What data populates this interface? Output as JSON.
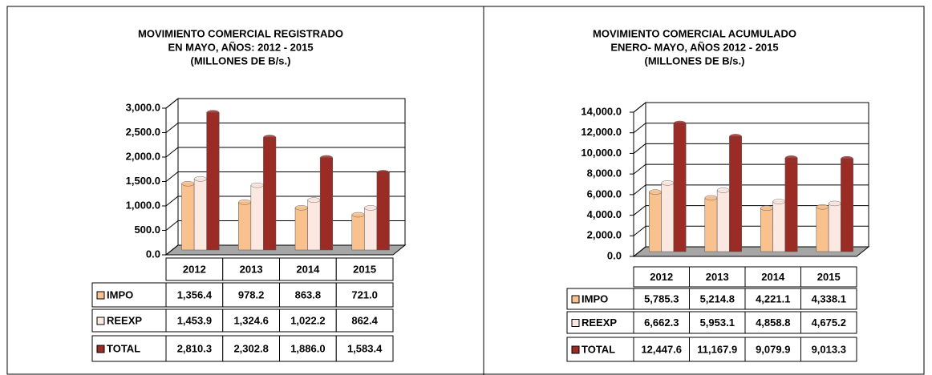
{
  "chart_data": [
    {
      "type": "bar3d",
      "title": [
        "MOVIMIENTO COMERCIAL REGISTRADO",
        "EN  MAYO, AÑOS: 2012 - 2015",
        "(MILLONES DE B/s.)"
      ],
      "categories": [
        "2012",
        "2013",
        "2014",
        "2015"
      ],
      "series": [
        {
          "name": "IMPO",
          "color": "#f9c18e",
          "values": [
            1356.4,
            978.2,
            863.8,
            721.0
          ],
          "value_labels": [
            "1,356.4",
            "978.2",
            "863.8",
            "721.0"
          ]
        },
        {
          "name": "REEXP",
          "color": "#fbe8e0",
          "values": [
            1453.9,
            1324.6,
            1022.2,
            862.4
          ],
          "value_labels": [
            "1,453.9",
            "1,324.6",
            "1,022.2",
            "862.4"
          ]
        },
        {
          "name": "TOTAL",
          "color": "#9b2b25",
          "values": [
            2810.3,
            2302.8,
            1886.0,
            1583.4
          ],
          "value_labels": [
            "2,810.3",
            "2,302.8",
            "1,886.0",
            "1,583.4"
          ]
        }
      ],
      "ylim": [
        0,
        3000
      ],
      "yticks": [
        {
          "value": 0,
          "label": "0.0"
        },
        {
          "value": 500,
          "label": "500.0"
        },
        {
          "value": 1000,
          "label": "1,000.0"
        },
        {
          "value": 1500,
          "label": "1,500.0"
        },
        {
          "value": 2000,
          "label": "2,000.0"
        },
        {
          "value": 2500,
          "label": "2,500.0"
        },
        {
          "value": 3000,
          "label": "3,000.0"
        }
      ],
      "grid": true
    },
    {
      "type": "bar3d",
      "title": [
        "MOVIMIENTO COMERCIAL ACUMULADO",
        "ENERO- MAYO, AÑOS 2012 - 2015",
        "(MILLONES DE B/s.)"
      ],
      "categories": [
        "2012",
        "2013",
        "2014",
        "2015"
      ],
      "series": [
        {
          "name": "IMPO",
          "color": "#f9c18e",
          "values": [
            5785.3,
            5214.8,
            4221.1,
            4338.1
          ],
          "value_labels": [
            "5,785.3",
            "5,214.8",
            "4,221.1",
            "4,338.1"
          ]
        },
        {
          "name": "REEXP",
          "color": "#fbe8e0",
          "values": [
            6662.3,
            5953.1,
            4858.8,
            4675.2
          ],
          "value_labels": [
            "6,662.3",
            "5,953.1",
            "4,858.8",
            "4,675.2"
          ]
        },
        {
          "name": "TOTAL",
          "color": "#9b2b25",
          "values": [
            12447.6,
            11167.9,
            9079.9,
            9013.3
          ],
          "value_labels": [
            "12,447.6",
            "11,167.9",
            "9,079.9",
            "9,013.3"
          ]
        }
      ],
      "ylim": [
        0,
        14000
      ],
      "yticks": [
        {
          "value": 0,
          "label": "0.0"
        },
        {
          "value": 2000,
          "label": "2,000.0"
        },
        {
          "value": 4000,
          "label": "4,000.0"
        },
        {
          "value": 6000,
          "label": "6,000.0"
        },
        {
          "value": 8000,
          "label": "8,000.0"
        },
        {
          "value": 10000,
          "label": "10,000.0"
        },
        {
          "value": 12000,
          "label": "12,000.0"
        },
        {
          "value": 14000,
          "label": "14,000.0"
        }
      ],
      "grid": true
    }
  ]
}
